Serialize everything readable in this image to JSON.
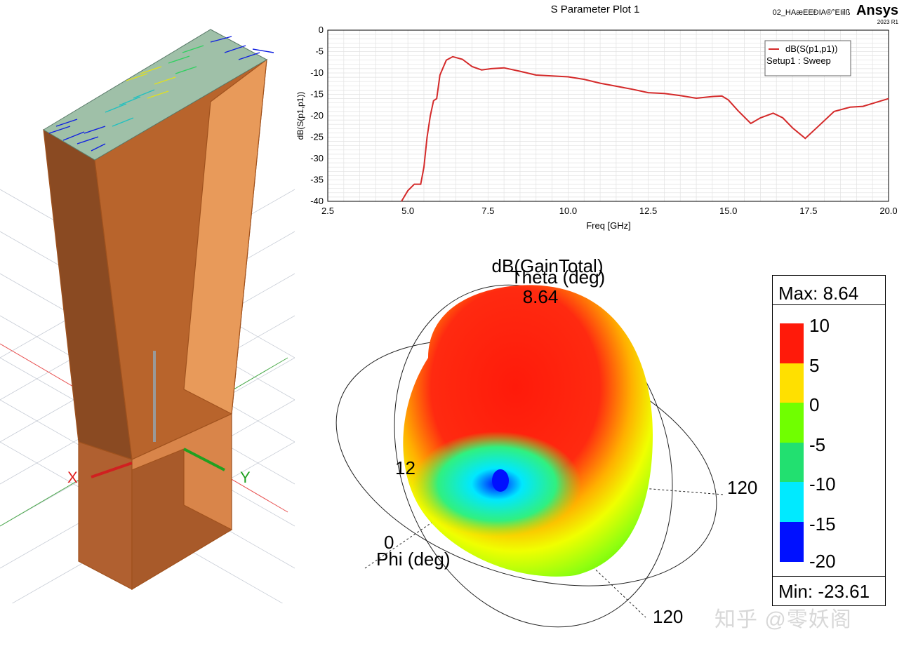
{
  "sparam_plot": {
    "title": "S Parameter Plot 1",
    "project_label": "02_HAæEEÐIA®°EIilß",
    "brand": "Ansys",
    "version": "2023 R1",
    "legend_trace": "dB(S(p1,p1))",
    "legend_setup": "Setup1 : Sweep"
  },
  "chart_data": {
    "type": "line",
    "xlabel": "Freq [GHz]",
    "ylabel": "dB(S(p1,p1))",
    "xlim": [
      2.5,
      20.0
    ],
    "ylim": [
      -40,
      0
    ],
    "xticks": [
      "2.5",
      "5.0",
      "7.5",
      "10.0",
      "12.5",
      "15.0",
      "17.5",
      "20.0"
    ],
    "yticks": [
      "0",
      "-5",
      "-10",
      "-15",
      "-20",
      "-25",
      "-30",
      "-35",
      "-40"
    ],
    "grid": true,
    "series": [
      {
        "name": "dB(S(p1,p1))",
        "color": "#d42a2a",
        "x": [
          4.8,
          5.0,
          5.2,
          5.4,
          5.5,
          5.6,
          5.7,
          5.8,
          5.9,
          6.0,
          6.2,
          6.4,
          6.7,
          7.0,
          7.3,
          7.6,
          8.0,
          8.5,
          9.0,
          9.5,
          10.0,
          10.5,
          11.0,
          11.5,
          12.0,
          12.5,
          13.0,
          13.5,
          14.0,
          14.5,
          14.8,
          15.0,
          15.3,
          15.7,
          16.0,
          16.4,
          16.7,
          17.0,
          17.4,
          17.8,
          18.3,
          18.8,
          19.2,
          19.6,
          20.0
        ],
        "values": [
          -40,
          -37.5,
          -36,
          -36,
          -32,
          -25,
          -20,
          -16.5,
          -16,
          -10.5,
          -7,
          -6.2,
          -6.8,
          -8.5,
          -9.3,
          -9,
          -8.8,
          -9.6,
          -10.5,
          -10.7,
          -10.9,
          -11.5,
          -12.4,
          -13.1,
          -13.8,
          -14.6,
          -14.8,
          -15.3,
          -15.9,
          -15.5,
          -15.4,
          -16.3,
          -18.8,
          -21.8,
          -20.5,
          -19.4,
          -20.5,
          -22.8,
          -25.3,
          -22.5,
          -19.0,
          -18.0,
          -17.8,
          -16.9,
          -16.0
        ]
      }
    ]
  },
  "horn_view": {
    "axis_x": "X",
    "axis_y": "Y"
  },
  "pattern": {
    "title": "dB(GainTotal)",
    "theta_label": "Theta (deg)",
    "phi_label": "Phi (deg)",
    "peak_value": "8.64",
    "theta_tick_120_a": "120",
    "theta_tick_120_b": "120",
    "phi_tick_0": "0",
    "partial_tick": "12"
  },
  "color_legend": {
    "max_label": "Max: 8.64",
    "min_label": "Min: -23.61",
    "bands": [
      {
        "label": "10",
        "color": "#ff1a0a"
      },
      {
        "label": "5",
        "color": "#ffe000"
      },
      {
        "label": "0",
        "color": "#70ff00"
      },
      {
        "label": "-5",
        "color": "#22e070"
      },
      {
        "label": "-10",
        "color": "#00eaff"
      },
      {
        "label": "-15",
        "color": "#0010ff"
      }
    ],
    "bottom_label": "-20"
  },
  "watermark": "知乎 @零妖阁"
}
